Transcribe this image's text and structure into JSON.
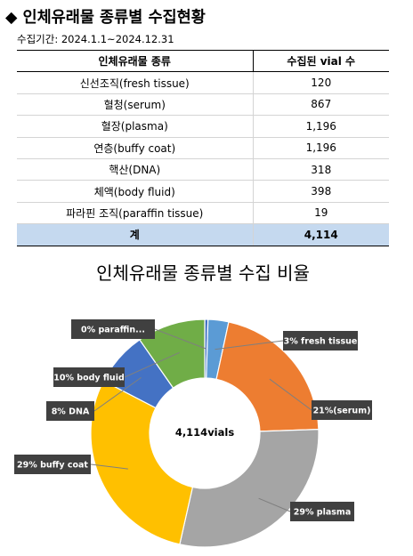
{
  "header": {
    "bullet": "◆",
    "title": "인체유래물 종류별 수집현황"
  },
  "period": "수집기간: 2024.1.1~2024.12.31",
  "table": {
    "columns": [
      "인체유래물 종류",
      "수집된 vial 수"
    ],
    "rows": [
      [
        "신선조직(fresh tissue)",
        "120"
      ],
      [
        "혈청(serum)",
        "867"
      ],
      [
        "혈장(plasma)",
        "1,196"
      ],
      [
        "연층(buffy coat)",
        "1,196"
      ],
      [
        "핵산(DNA)",
        "318"
      ],
      [
        "체액(body fluid)",
        "398"
      ],
      [
        "파라핀 조직(paraffin tissue)",
        "19"
      ]
    ],
    "total": [
      "계",
      "4,114"
    ]
  },
  "chart_data": {
    "type": "pie",
    "title": "인체유래물 종류별 수집 비율",
    "center_label": "4,114vials",
    "slices": [
      {
        "label": "0% paraffin...",
        "value": 19,
        "color": "#4472c4"
      },
      {
        "label": "3% fresh tissue",
        "value": 120,
        "color": "#5b9bd5"
      },
      {
        "label": "21%(serum)",
        "value": 867,
        "color": "#ed7d31"
      },
      {
        "label": "29% plasma",
        "value": 1196,
        "color": "#a5a5a5"
      },
      {
        "label": "29% buffy coat",
        "value": 1196,
        "color": "#ffc000"
      },
      {
        "label": "8%  DNA",
        "value": 318,
        "color": "#4472c4"
      },
      {
        "label": "10% body fluid",
        "value": 398,
        "color": "#70ad47"
      }
    ]
  }
}
